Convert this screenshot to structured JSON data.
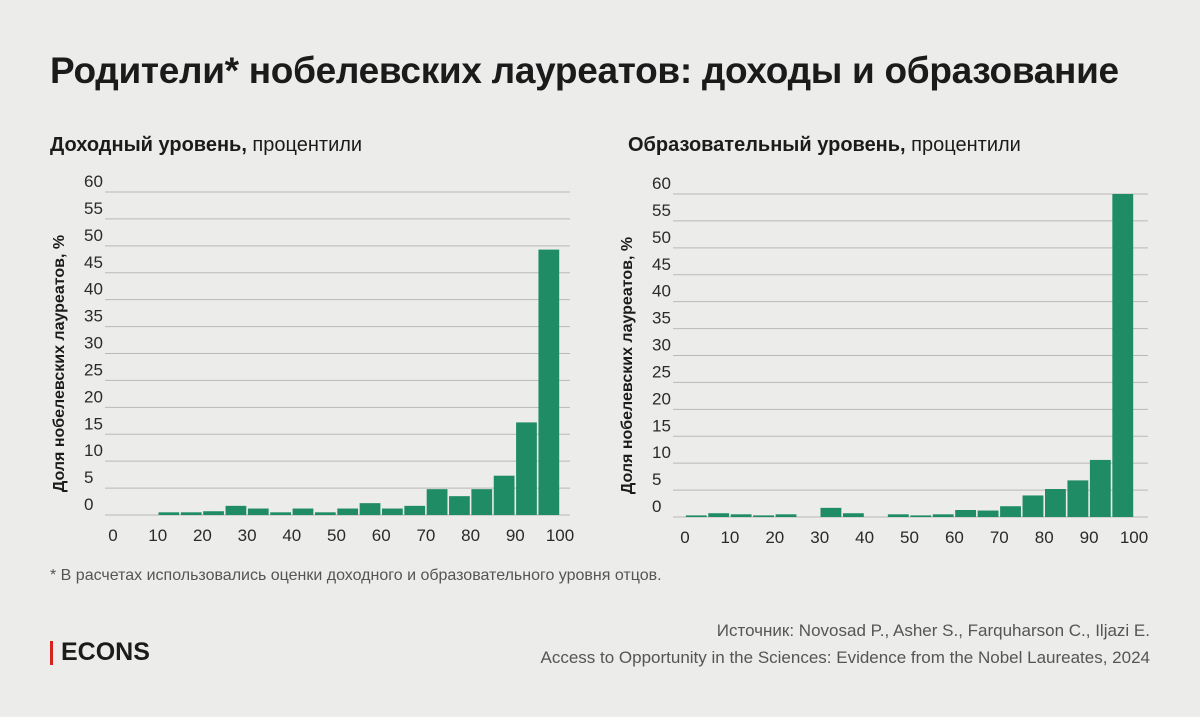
{
  "header": {
    "title": "Родители* нобелевских лауреатов: доходы и образование"
  },
  "footer": {
    "note": "* В расчетах использовались оценки доходного и образовательного уровня отцов.",
    "logo": "ECONS",
    "source_line1": "Источник: Novosad P., Asher S., Farquharson C., Iljazi E.",
    "source_line2": "Access to Opportunity in the Sciences: Evidence from the Nobel Laureates, 2024"
  },
  "colors": {
    "bar": "#1f8c65",
    "logo_accent": "#d6231e"
  },
  "chart_data": [
    {
      "type": "bar",
      "title_bold": "Доходный уровень,",
      "title_rest": " процентили",
      "ylabel": "Доля нобелевских лауреатов, %",
      "xlabel": "",
      "ylim": [
        0,
        60
      ],
      "yticks": [
        "0",
        "5",
        "10",
        "15",
        "20",
        "25",
        "30",
        "35",
        "40",
        "45",
        "50",
        "55",
        "60"
      ],
      "xticks": [
        "0",
        "10",
        "20",
        "30",
        "40",
        "50",
        "60",
        "70",
        "80",
        "90",
        "100"
      ],
      "bins": [
        "5-10",
        "10-15",
        "15-20",
        "20-25",
        "25-30",
        "30-35",
        "35-40",
        "40-45",
        "45-50",
        "50-55",
        "55-60",
        "60-65",
        "65-70",
        "70-75",
        "75-80",
        "80-85",
        "85-90",
        "90-95",
        "95-100"
      ],
      "values": [
        0,
        0.5,
        0.5,
        0.7,
        1.7,
        1.2,
        0.5,
        1.2,
        0.5,
        1.2,
        2.2,
        1.2,
        1.7,
        4.8,
        3.5,
        4.8,
        7.3,
        17.2,
        49.3
      ]
    },
    {
      "type": "bar",
      "title_bold": "Образовательный уровень,",
      "title_rest": " процентили",
      "ylabel": "Доля нобелевских лауреатов, %",
      "xlabel": "",
      "ylim": [
        0,
        60
      ],
      "yticks": [
        "0",
        "5",
        "10",
        "15",
        "20",
        "25",
        "30",
        "35",
        "40",
        "45",
        "50",
        "55",
        "60"
      ],
      "xticks": [
        "0",
        "10",
        "20",
        "30",
        "40",
        "50",
        "60",
        "70",
        "80",
        "90",
        "100"
      ],
      "bins": [
        "0-5",
        "5-10",
        "10-15",
        "15-20",
        "20-25",
        "25-30",
        "30-35",
        "35-40",
        "40-45",
        "45-50",
        "50-55",
        "55-60",
        "60-65",
        "65-70",
        "70-75",
        "75-80",
        "80-85",
        "85-90",
        "90-95",
        "95-100"
      ],
      "values": [
        0.3,
        0.7,
        0.5,
        0.3,
        0.5,
        0,
        1.7,
        0.7,
        0,
        0.5,
        0.3,
        0.5,
        1.3,
        1.2,
        2,
        4,
        5.2,
        6.8,
        10.6,
        60
      ]
    }
  ]
}
